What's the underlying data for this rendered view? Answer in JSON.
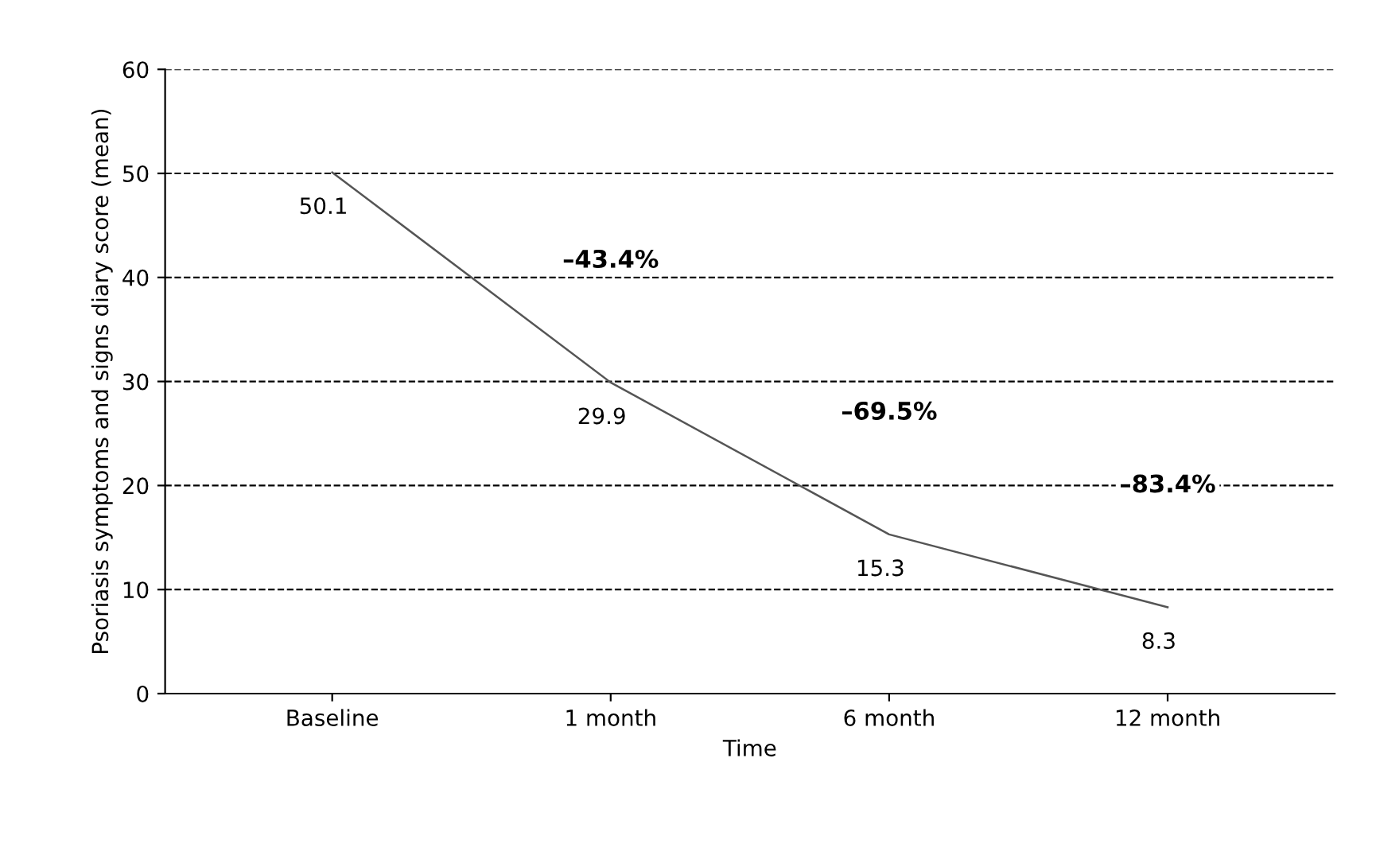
{
  "chart_data": {
    "type": "line",
    "xlabel": "Time",
    "ylabel": "Psoriasis symptoms and signs diary score (mean)",
    "categories": [
      "Baseline",
      "1 month",
      "6 month",
      "12 month"
    ],
    "series": [
      {
        "color": "#555555",
        "values": [
          50.1,
          29.9,
          15.3,
          8.3
        ]
      }
    ],
    "ylim": [
      0,
      60
    ],
    "yticks": [
      0,
      10,
      20,
      30,
      40,
      50,
      60
    ],
    "grid": "y",
    "line_style": "solid",
    "marker": "none",
    "data_labels": true,
    "annotations": [
      "–43.4%",
      "–69.5%",
      "–83.4%"
    ]
  }
}
